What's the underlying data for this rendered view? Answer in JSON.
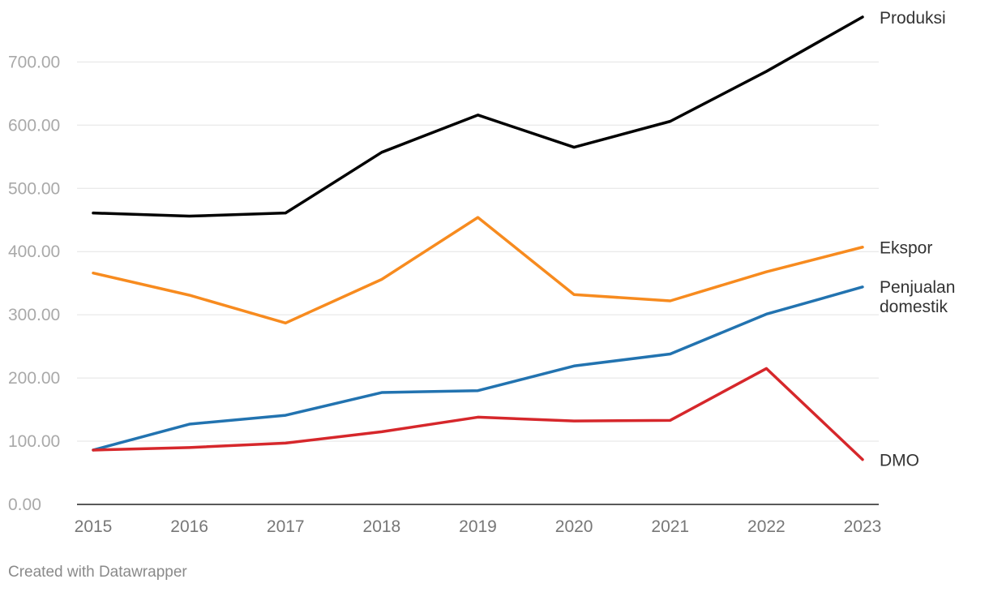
{
  "chart_data": {
    "type": "line",
    "title": "",
    "xlabel": "",
    "ylabel": "",
    "x": [
      "2015",
      "2016",
      "2017",
      "2018",
      "2019",
      "2020",
      "2021",
      "2022",
      "2023"
    ],
    "ylim": [
      0,
      770
    ],
    "yticks": [
      0,
      100,
      200,
      300,
      400,
      500,
      600,
      700
    ],
    "ytick_labels": [
      "0.00",
      "100.00",
      "200.00",
      "300.00",
      "400.00",
      "500.00",
      "600.00",
      "700.00"
    ],
    "grid": true,
    "legend": "direct labels at line ends (right)",
    "series": [
      {
        "name": "Produksi",
        "label_lines": [
          "Produksi"
        ],
        "color": "#000000",
        "values": [
          461,
          456,
          461,
          557,
          616,
          565,
          606,
          685,
          771
        ]
      },
      {
        "name": "Ekspor",
        "label_lines": [
          "Ekspor"
        ],
        "color": "#f78b1f",
        "values": [
          366,
          331,
          287,
          356,
          454,
          332,
          322,
          368,
          407
        ]
      },
      {
        "name": "Penjualan domestik",
        "label_lines": [
          "Penjualan",
          "domestik"
        ],
        "color": "#2273b0",
        "values": [
          86,
          127,
          141,
          177,
          180,
          219,
          238,
          301,
          344
        ]
      },
      {
        "name": "DMO",
        "label_lines": [
          "DMO"
        ],
        "color": "#d6272b",
        "values": [
          86,
          90,
          97,
          115,
          138,
          132,
          133,
          215,
          71
        ]
      }
    ]
  },
  "footer": {
    "credit": "Created with Datawrapper"
  }
}
